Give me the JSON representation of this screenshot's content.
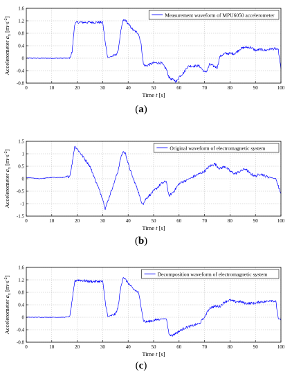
{
  "chart_data": [
    {
      "type": "line",
      "caption": "(a)",
      "legend": "Measurement waveform of MPU6050 accelerometer",
      "legend_position": "top-right",
      "xlabel": "Time t [s]",
      "ylabel": "Accelerometer a_x [m·s^-2]",
      "xlim": [
        0,
        100
      ],
      "ylim": [
        -0.8,
        1.6
      ],
      "xticks": [
        "0",
        "10",
        "20",
        "30",
        "40",
        "50",
        "60",
        "70",
        "80",
        "90",
        "100"
      ],
      "yticks": [
        "-0.8",
        "-0.4",
        "0",
        "0.4",
        "0.8",
        "1.2",
        "1.6"
      ],
      "grid": true,
      "color": "#0000ff",
      "series": [
        {
          "x": [
            0,
            17,
            18,
            19,
            20,
            25,
            30,
            31,
            32,
            35,
            36,
            37,
            38,
            39,
            40,
            42,
            44,
            45,
            46,
            47,
            50,
            53,
            55,
            56,
            57,
            58,
            59,
            60,
            62,
            63,
            64,
            66,
            68,
            70,
            71,
            72,
            75,
            76,
            78,
            80,
            82,
            84,
            86,
            88,
            90,
            92,
            94,
            96,
            98,
            99,
            100
          ],
          "y": [
            0,
            0,
            0.2,
            1.1,
            1.15,
            1.15,
            1.15,
            0.5,
            0.02,
            0.1,
            0.2,
            0.8,
            1.2,
            1.22,
            1.1,
            0.9,
            0.8,
            0.5,
            -0.2,
            -0.25,
            -0.15,
            -0.15,
            -0.35,
            -0.6,
            -0.68,
            -0.7,
            -0.75,
            -0.6,
            -0.45,
            -0.3,
            -0.25,
            -0.25,
            -0.25,
            -0.45,
            -0.4,
            -0.2,
            -0.3,
            0.05,
            0.15,
            0.15,
            0.15,
            0.3,
            0.35,
            0.35,
            0.25,
            0.28,
            0.25,
            0.3,
            0.3,
            0.25,
            -0.35
          ]
        }
      ]
    },
    {
      "type": "line",
      "caption": "(b)",
      "legend": "Original waveform of electromagnetic system",
      "legend_position": "top-right",
      "xlabel": "Time t [s]",
      "ylabel": "Accelerometer a_x [m·s^-2]",
      "xlim": [
        0,
        100
      ],
      "ylim": [
        -1.5,
        1.5
      ],
      "xticks": [
        "0",
        "10",
        "20",
        "30",
        "40",
        "50",
        "60",
        "70",
        "80",
        "90",
        "100"
      ],
      "yticks": [
        "-1.5",
        "-1",
        "-0.5",
        "0",
        "0.5",
        "1",
        "1.5"
      ],
      "grid": true,
      "color": "#0000ff",
      "series": [
        {
          "x": [
            0,
            5,
            10,
            15,
            17,
            18,
            19,
            20,
            25,
            30,
            31,
            32,
            34,
            36,
            37,
            38,
            39,
            40,
            42,
            44,
            45,
            46,
            47,
            50,
            53,
            55,
            56,
            58,
            60,
            64,
            68,
            70,
            72,
            74,
            76,
            78,
            80,
            82,
            84,
            86,
            88,
            90,
            92,
            94,
            96,
            98,
            99,
            100
          ],
          "y": [
            0.05,
            0.0,
            0.05,
            0.05,
            0.1,
            0.6,
            1.3,
            1.2,
            0.5,
            -0.8,
            -1.2,
            -0.9,
            -0.3,
            0.3,
            0.8,
            1.1,
            1.0,
            0.6,
            0.0,
            -0.5,
            -0.9,
            -1.0,
            -0.8,
            -0.5,
            -0.2,
            -0.1,
            -0.7,
            -0.5,
            -0.2,
            0.0,
            0.2,
            0.3,
            0.5,
            0.6,
            0.4,
            0.5,
            0.3,
            0.2,
            0.3,
            0.4,
            0.2,
            0.1,
            0.2,
            0.1,
            0.05,
            0.0,
            -0.3,
            -0.6
          ]
        }
      ]
    },
    {
      "type": "line",
      "caption": "(c)",
      "legend": "Decomposition waveform of electromagnetic system",
      "legend_position": "top-right",
      "xlabel": "Time t [s]",
      "ylabel": "Accelerometer a_x [m·s^-2]",
      "xlim": [
        0,
        100
      ],
      "ylim": [
        -0.8,
        1.6
      ],
      "xticks": [
        "0",
        "10",
        "20",
        "30",
        "40",
        "50",
        "60",
        "70",
        "80",
        "90",
        "100"
      ],
      "yticks": [
        "-0.8",
        "-0.4",
        "0",
        "0.4",
        "0.8",
        "1.2",
        "1.6"
      ],
      "grid": true,
      "color": "#0000ff",
      "series": [
        {
          "x": [
            0,
            5,
            10,
            15,
            17,
            18,
            19,
            20,
            25,
            30,
            31,
            32,
            35,
            36,
            37,
            38,
            39,
            40,
            42,
            44,
            45,
            46,
            47,
            50,
            53,
            55,
            56,
            57,
            58,
            60,
            62,
            64,
            66,
            68,
            70,
            72,
            74,
            76,
            78,
            80,
            82,
            84,
            86,
            88,
            90,
            92,
            94,
            96,
            98,
            99,
            100
          ],
          "y": [
            0.0,
            0.0,
            0.0,
            0.0,
            0.02,
            0.5,
            1.15,
            1.2,
            1.15,
            1.15,
            0.5,
            0.02,
            0.1,
            0.3,
            0.9,
            1.3,
            1.2,
            1.1,
            0.9,
            0.8,
            0.4,
            -0.1,
            -0.15,
            -0.1,
            -0.05,
            -0.05,
            -0.5,
            -0.6,
            -0.55,
            -0.45,
            -0.35,
            -0.3,
            -0.25,
            -0.2,
            0.0,
            0.3,
            0.35,
            0.35,
            0.5,
            0.55,
            0.5,
            0.5,
            0.45,
            0.45,
            0.45,
            0.5,
            0.5,
            0.55,
            0.5,
            -0.05,
            -0.1
          ]
        }
      ]
    }
  ]
}
